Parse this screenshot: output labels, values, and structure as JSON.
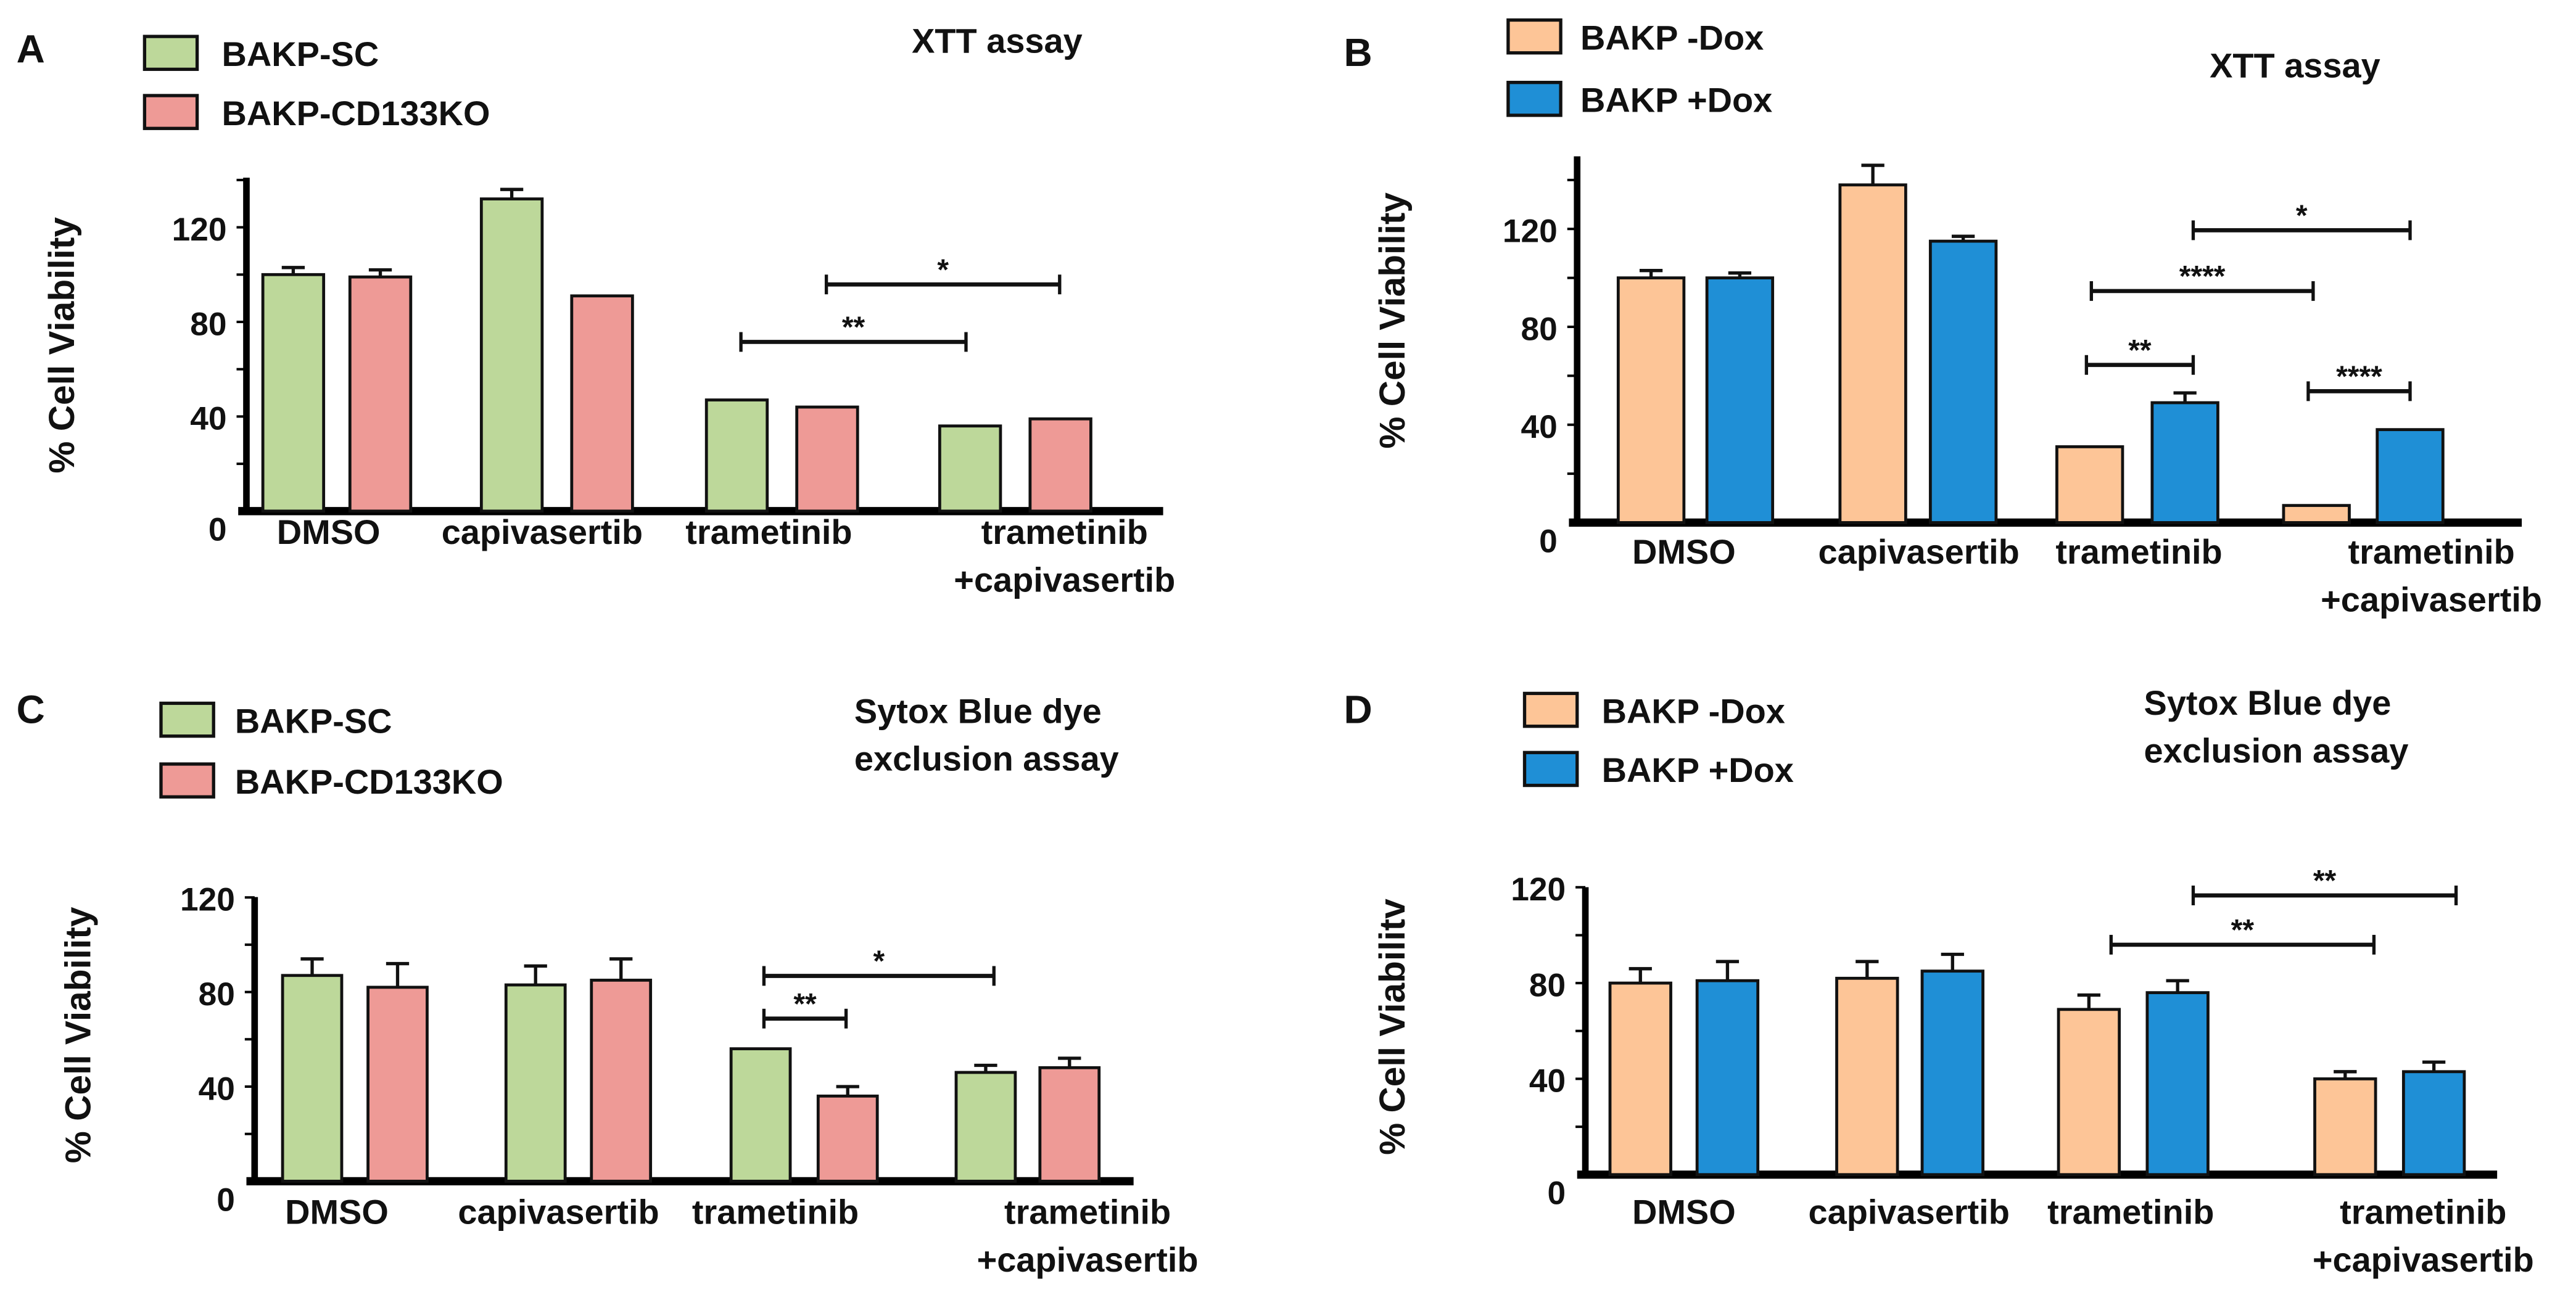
{
  "colors": {
    "green": "#bdd89a",
    "pink": "#ee9a96",
    "orange": "#fdc597",
    "blue": "#1f8fd6"
  },
  "chart_data": [
    {
      "panel": "A",
      "type": "bar",
      "title": "XTT assay",
      "title_line2": "",
      "ylabel": "% Cell Viability",
      "ylim": [
        0,
        140
      ],
      "yticks": [
        0,
        40,
        80,
        120
      ],
      "categories": [
        "DMSO",
        "capivasertib",
        "trametinib",
        "trametinib"
      ],
      "category_line2": [
        "",
        "",
        "",
        "+capivasertib"
      ],
      "series": [
        {
          "name": "BAKP-SC",
          "color": "#bdd89a",
          "values": [
            100,
            132,
            47,
            36
          ],
          "errors": [
            3,
            4,
            0,
            0
          ]
        },
        {
          "name": "BAKP-CD133KO",
          "color": "#ee9a96",
          "values": [
            99,
            91,
            44,
            39
          ],
          "errors": [
            3,
            0,
            0,
            0
          ]
        }
      ],
      "significance": [
        {
          "label": "**",
          "from": "trametinib BAKP-SC",
          "to": "trametinib+capivasertib BAKP-SC"
        },
        {
          "label": "*",
          "from": "trametinib BAKP-CD133KO",
          "to": "trametinib+capivasertib BAKP-CD133KO"
        }
      ]
    },
    {
      "panel": "B",
      "type": "bar",
      "title": "XTT assay",
      "title_line2": "",
      "ylabel": "% Cell Viability",
      "ylim": [
        0,
        140
      ],
      "yticks": [
        0,
        40,
        80,
        120
      ],
      "categories": [
        "DMSO",
        "capivasertib",
        "trametinib",
        "trametinib"
      ],
      "category_line2": [
        "",
        "",
        "",
        "+capivasertib"
      ],
      "series": [
        {
          "name": "BAKP -Dox",
          "color": "#fdc597",
          "values": [
            100,
            138,
            31,
            7
          ],
          "errors": [
            3,
            8,
            0,
            0
          ]
        },
        {
          "name": "BAKP +Dox",
          "color": "#1f8fd6",
          "values": [
            100,
            115,
            49,
            38
          ],
          "errors": [
            2,
            2,
            4,
            0
          ]
        }
      ],
      "significance": [
        {
          "label": "**",
          "from": "trametinib -Dox",
          "to": "trametinib +Dox"
        },
        {
          "label": "****",
          "from": "trametinib -Dox",
          "to": "trametinib+capivasertib -Dox"
        },
        {
          "label": "*",
          "from": "trametinib +Dox",
          "to": "trametinib+capivasertib +Dox"
        },
        {
          "label": "****",
          "from": "trametinib+capivasertib -Dox",
          "to": "trametinib+capivasertib +Dox"
        }
      ]
    },
    {
      "panel": "C",
      "type": "bar",
      "title": "Sytox Blue dye",
      "title_line2": "exclusion assay",
      "ylabel": "% Cell Viability",
      "ylim": [
        0,
        120
      ],
      "yticks": [
        0,
        40,
        80,
        120
      ],
      "categories": [
        "DMSO",
        "capivasertib",
        "trametinib",
        "trametinib"
      ],
      "category_line2": [
        "",
        "",
        "",
        "+capivasertib"
      ],
      "series": [
        {
          "name": "BAKP-SC",
          "color": "#bdd89a",
          "values": [
            87,
            83,
            56,
            46
          ],
          "errors": [
            7,
            8,
            0,
            3
          ]
        },
        {
          "name": "BAKP-CD133KO",
          "color": "#ee9a96",
          "values": [
            82,
            85,
            36,
            48
          ],
          "errors": [
            10,
            9,
            4,
            4
          ]
        }
      ],
      "significance": [
        {
          "label": "**",
          "from": "trametinib BAKP-SC",
          "to": "trametinib BAKP-CD133KO"
        },
        {
          "label": "*",
          "from": "trametinib BAKP-SC",
          "to": "trametinib+capivasertib BAKP-SC"
        }
      ]
    },
    {
      "panel": "D",
      "type": "bar",
      "title": "Sytox Blue dye",
      "title_line2": "exclusion assay",
      "ylabel": "% Cell Viabilitv",
      "ylim": [
        0,
        120
      ],
      "yticks": [
        0,
        40,
        80,
        120
      ],
      "categories": [
        "DMSO",
        "capivasertib",
        "trametinib",
        "trametinib"
      ],
      "category_line2": [
        "",
        "",
        "",
        "+capivasertib"
      ],
      "series": [
        {
          "name": "BAKP -Dox",
          "color": "#fdc597",
          "values": [
            80,
            82,
            69,
            40
          ],
          "errors": [
            6,
            7,
            6,
            3
          ]
        },
        {
          "name": "BAKP +Dox",
          "color": "#1f8fd6",
          "values": [
            81,
            85,
            76,
            43
          ],
          "errors": [
            8,
            7,
            5,
            4
          ]
        }
      ],
      "significance": [
        {
          "label": "**",
          "from": "trametinib -Dox",
          "to": "trametinib+capivasertib -Dox"
        },
        {
          "label": "**",
          "from": "trametinib +Dox",
          "to": "trametinib+capivasertib +Dox"
        }
      ]
    }
  ]
}
